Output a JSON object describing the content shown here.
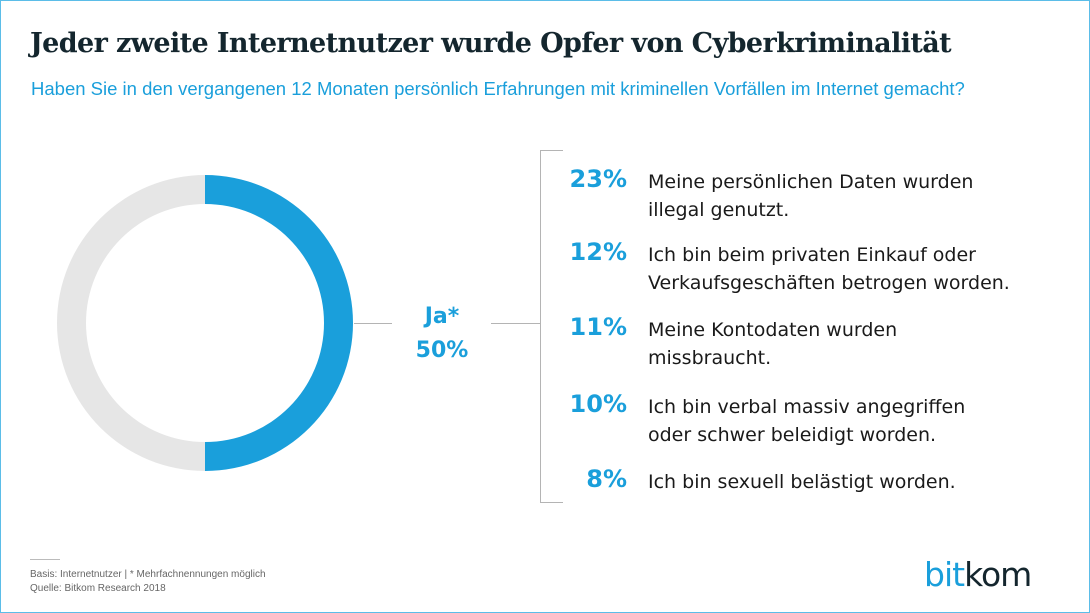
{
  "header": {
    "title": "Jeder zweite Internetnutzer wurde Opfer von Cyberkriminalität",
    "subtitle": "Haben Sie in den vergangenen 12 Monaten persönlich Erfahrungen mit kriminellen Vorfällen im Internet gemacht?"
  },
  "colors": {
    "accent": "#1a9fdb",
    "remainder": "#e6e6e6",
    "text": "#14262e"
  },
  "chart_data": [
    {
      "type": "pie",
      "variant": "donut",
      "slices": [
        {
          "label": "Ja*",
          "value": 50,
          "color": "#1a9fdb"
        },
        {
          "label": "",
          "value": 50,
          "color": "#e6e6e6"
        }
      ],
      "center_label": {
        "label": "Ja*",
        "value": "50%"
      }
    },
    {
      "type": "table",
      "rows": [
        {
          "value": "23%",
          "label": "Meine persönlichen Daten wurden\nillegal genutzt."
        },
        {
          "value": "12%",
          "label": "Ich bin beim privaten Einkauf oder\nVerkaufsgeschäften betrogen worden."
        },
        {
          "value": "11%",
          "label": "Meine Kontodaten wurden\nmissbraucht."
        },
        {
          "value": "10%",
          "label": "Ich bin verbal massiv angegriffen\noder schwer beleidigt worden."
        },
        {
          "value": "8%",
          "label": "Ich bin sexuell belästigt worden."
        }
      ]
    }
  ],
  "footer": {
    "basis": "Basis: Internetnutzer | * Mehrfachnennungen möglich",
    "source": "Quelle: Bitkom Research 2018"
  },
  "logo": {
    "part1": "bit",
    "part2": "kom"
  }
}
